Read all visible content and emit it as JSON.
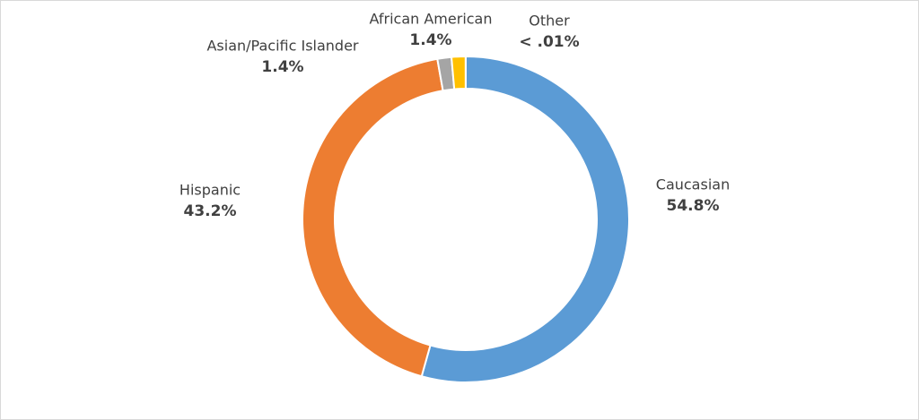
{
  "chart_data": {
    "type": "donut",
    "categories": [
      "Caucasian",
      "Hispanic",
      "Asian/Pacific Islander",
      "African American",
      "Other"
    ],
    "values": [
      54.8,
      43.2,
      1.4,
      1.4,
      0.01
    ],
    "value_labels": [
      "54.8%",
      "43.2%",
      "1.4%",
      "1.4%",
      "< .01%"
    ],
    "colors": [
      "#5b9bd5",
      "#ed7d31",
      "#a5a5a5",
      "#ffc000",
      "#4472c4"
    ]
  }
}
